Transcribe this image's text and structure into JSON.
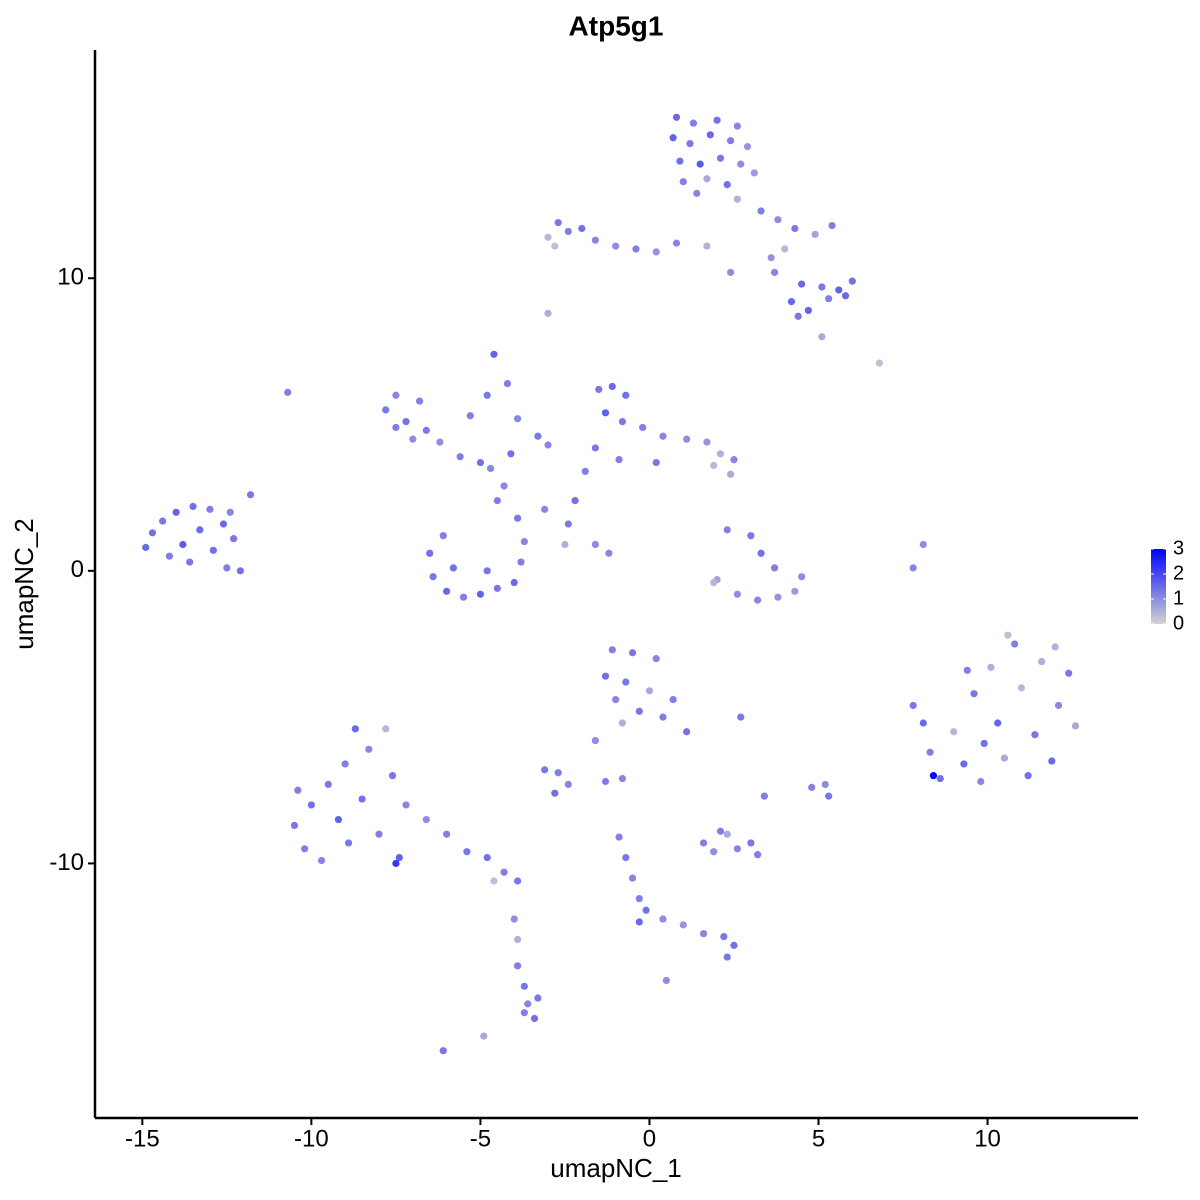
{
  "chart_data": {
    "type": "scatter",
    "title": "Atp5g1",
    "xlabel": "umapNC_1",
    "ylabel": "umapNC_2",
    "xlim": [
      -16.4,
      14.45
    ],
    "ylim": [
      -18.7,
      17.8
    ],
    "xticks": [
      -15,
      -10,
      -5,
      0,
      5,
      10
    ],
    "yticks": [
      -10,
      0,
      10
    ],
    "grid": false,
    "color_low": "#d3d3d3",
    "color_high": "#0000ff",
    "colorlim": [
      0,
      3
    ],
    "colorticks": [
      0,
      1,
      2,
      3
    ],
    "x": [
      0.8,
      1.3,
      2.0,
      2.6,
      0.7,
      1.2,
      1.8,
      2.4,
      2.9,
      0.9,
      1.5,
      2.1,
      2.7,
      1.0,
      1.7,
      2.3,
      3.1,
      1.4,
      2.6,
      3.3,
      3.8,
      4.3,
      4.9,
      5.4,
      4.0,
      3.7,
      4.5,
      5.1,
      5.6,
      6.0,
      4.2,
      4.7,
      5.3,
      5.8,
      4.4,
      5.1,
      -3.0,
      -2.7,
      -2.4,
      -2.0,
      -1.6,
      -1.0,
      -0.4,
      0.2,
      0.8,
      1.7,
      -2.8,
      2.4,
      3.6,
      -3.0,
      6.8,
      -10.7,
      -14.9,
      -14.7,
      -14.4,
      -14.0,
      -13.5,
      -13.0,
      -12.6,
      -12.3,
      -14.2,
      -13.8,
      -13.3,
      -12.9,
      -13.6,
      -12.5,
      -12.1,
      -12.4,
      -11.8,
      -7.8,
      -7.5,
      -7.2,
      -6.8,
      -6.6,
      -6.2,
      -5.6,
      -5.0,
      -4.7,
      -5.3,
      -4.8,
      -4.6,
      -4.2,
      -3.9,
      -3.3,
      -7.5,
      -7.0,
      -4.1,
      -3.0,
      -6.5,
      -6.4,
      -6.0,
      -5.5,
      -5.0,
      -4.5,
      -4.0,
      -3.8,
      -3.7,
      -3.9,
      -4.5,
      -4.3,
      -5.8,
      -4.8,
      -6.1,
      -1.5,
      -1.1,
      -0.7,
      -1.3,
      -0.8,
      -0.2,
      0.4,
      1.1,
      1.7,
      2.1,
      2.5,
      2.4,
      1.9,
      -1.6,
      -1.9,
      -0.9,
      0.2,
      -2.2,
      -2.4,
      -3.1,
      -2.5,
      -1.6,
      -1.2,
      2.3,
      3.0,
      3.3,
      3.7,
      2.0,
      2.6,
      3.2,
      3.8,
      4.3,
      4.5,
      1.9,
      8.1,
      7.8,
      7.8,
      8.1,
      8.3,
      8.6,
      9.0,
      9.3,
      9.6,
      9.8,
      10.1,
      10.3,
      10.5,
      10.8,
      11.0,
      11.2,
      11.4,
      11.6,
      11.9,
      12.1,
      12.4,
      12.6,
      9.4,
      10.6,
      8.4,
      12.0,
      9.9,
      -10.5,
      -10.2,
      -10.0,
      -9.7,
      -9.5,
      -9.2,
      -9.0,
      -8.9,
      -8.7,
      -8.5,
      -8.3,
      -8.0,
      -7.8,
      -7.6,
      -7.2,
      -7.4,
      -6.6,
      -6.0,
      -5.4,
      -4.8,
      -4.3,
      -3.9,
      -4.6,
      -10.4,
      -7.5,
      -1.1,
      -0.5,
      0.2,
      -1.3,
      -0.7,
      0.0,
      0.7,
      -1.0,
      -0.3,
      0.4,
      1.1,
      -0.8,
      -3.1,
      -2.7,
      -2.4,
      -2.8,
      -1.6,
      -1.3,
      -0.8,
      1.6,
      1.9,
      2.3,
      2.6,
      3.0,
      3.2,
      2.1,
      2.7,
      4.8,
      5.2,
      5.3,
      3.4,
      -0.9,
      -0.7,
      -0.5,
      -0.3,
      -0.1,
      -0.3,
      0.4,
      1.0,
      1.6,
      2.2,
      2.5,
      2.3,
      -3.9,
      -3.7,
      -3.6,
      -3.4,
      -3.7,
      -3.3,
      -4.0,
      -3.9,
      0.5,
      -4.9,
      -6.1
    ],
    "y": [
      15.5,
      15.3,
      15.4,
      15.2,
      14.8,
      14.6,
      14.9,
      14.7,
      14.5,
      14.0,
      13.9,
      14.1,
      13.9,
      13.3,
      13.4,
      13.2,
      13.6,
      12.9,
      12.7,
      12.3,
      12.0,
      11.7,
      11.5,
      11.8,
      11.0,
      10.2,
      9.8,
      9.7,
      9.6,
      9.9,
      9.2,
      8.9,
      9.3,
      9.4,
      8.7,
      8.0,
      11.4,
      11.9,
      11.6,
      11.7,
      11.3,
      11.1,
      11.0,
      10.9,
      11.2,
      11.1,
      11.1,
      10.2,
      10.7,
      8.8,
      7.1,
      6.1,
      0.8,
      1.3,
      1.7,
      2.0,
      2.2,
      2.1,
      1.6,
      1.1,
      0.5,
      0.9,
      1.4,
      0.7,
      0.3,
      0.1,
      0.0,
      2.0,
      2.6,
      5.5,
      6.0,
      5.1,
      5.8,
      4.8,
      4.4,
      3.9,
      3.7,
      3.5,
      5.3,
      6.0,
      7.4,
      6.4,
      5.2,
      4.6,
      4.9,
      4.5,
      4.0,
      4.3,
      0.6,
      -0.2,
      -0.7,
      -0.9,
      -0.8,
      -0.6,
      -0.4,
      0.3,
      1.0,
      1.8,
      2.4,
      2.9,
      0.1,
      0.0,
      1.2,
      6.2,
      6.3,
      6.0,
      5.4,
      5.1,
      4.9,
      4.6,
      4.5,
      4.4,
      4.0,
      3.8,
      3.3,
      3.6,
      4.2,
      3.4,
      3.8,
      3.7,
      2.4,
      1.6,
      2.1,
      0.9,
      0.9,
      0.6,
      1.4,
      1.2,
      0.6,
      0.1,
      -0.3,
      -0.8,
      -1.0,
      -0.9,
      -0.7,
      -0.2,
      -0.4,
      0.9,
      0.1,
      -4.6,
      -5.2,
      -6.2,
      -7.1,
      -5.5,
      -6.6,
      -4.2,
      -7.2,
      -3.3,
      -5.2,
      -6.4,
      -2.5,
      -4.0,
      -7.0,
      -5.6,
      -3.1,
      -6.5,
      -4.6,
      -3.5,
      -5.3,
      -3.4,
      -2.2,
      -7.0,
      -2.6,
      -5.9,
      -8.7,
      -9.5,
      -8.0,
      -9.9,
      -7.3,
      -8.5,
      -6.6,
      -9.3,
      -5.4,
      -7.8,
      -6.1,
      -9.0,
      -5.4,
      -7.0,
      -8.0,
      -9.8,
      -8.5,
      -9.0,
      -9.6,
      -9.8,
      -10.3,
      -10.6,
      -10.6,
      -7.5,
      -10.0,
      -2.7,
      -2.8,
      -3.0,
      -3.6,
      -3.8,
      -4.1,
      -4.4,
      -4.4,
      -4.8,
      -5.0,
      -5.5,
      -5.2,
      -6.8,
      -6.9,
      -7.3,
      -7.6,
      -5.8,
      -7.2,
      -7.1,
      -9.3,
      -9.6,
      -9.0,
      -9.5,
      -9.3,
      -9.7,
      -8.9,
      -5.0,
      -7.4,
      -7.3,
      -7.7,
      -7.7,
      -9.1,
      -9.8,
      -10.5,
      -11.2,
      -11.6,
      -12.0,
      -11.9,
      -12.1,
      -12.4,
      -12.5,
      -12.8,
      -13.2,
      -13.5,
      -14.2,
      -14.8,
      -15.3,
      -15.1,
      -14.6,
      -11.9,
      -12.6,
      -14.0,
      -15.9,
      -16.4
    ],
    "values": [
      1.5,
      1.2,
      1.4,
      1.1,
      1.6,
      1.3,
      1.5,
      1.2,
      0.9,
      1.4,
      1.7,
      1.3,
      1.0,
      1.2,
      0.6,
      1.4,
      0.8,
      1.1,
      0.5,
      1.2,
      1.0,
      1.3,
      0.7,
      1.2,
      0.4,
      1.1,
      1.5,
      1.3,
      1.6,
      1.4,
      1.5,
      1.6,
      1.2,
      1.5,
      1.3,
      0.6,
      0.4,
      1.3,
      1.2,
      1.4,
      1.1,
      1.0,
      1.2,
      0.9,
      1.1,
      0.5,
      0.3,
      1.0,
      0.9,
      0.5,
      0.3,
      1.2,
      1.5,
      1.4,
      1.3,
      1.6,
      1.4,
      1.2,
      1.5,
      1.3,
      1.2,
      1.7,
      1.5,
      1.4,
      1.3,
      1.2,
      1.4,
      1.1,
      1.3,
      1.3,
      1.1,
      1.4,
      1.2,
      1.3,
      1.0,
      1.2,
      1.4,
      1.1,
      1.2,
      1.3,
      1.6,
      1.2,
      1.1,
      1.3,
      1.2,
      1.0,
      1.4,
      1.1,
      1.4,
      1.3,
      1.5,
      1.2,
      1.6,
      1.3,
      1.5,
      1.2,
      1.1,
      1.3,
      1.2,
      1.1,
      1.4,
      1.3,
      1.2,
      1.3,
      1.5,
      1.4,
      1.6,
      1.3,
      1.2,
      1.1,
      1.0,
      0.9,
      0.5,
      1.1,
      0.6,
      0.4,
      1.3,
      1.2,
      1.2,
      1.3,
      1.4,
      1.3,
      1.1,
      0.5,
      1.0,
      1.1,
      1.2,
      1.3,
      1.4,
      1.2,
      0.7,
      1.0,
      1.1,
      0.9,
      0.8,
      1.0,
      0.4,
      1.0,
      1.1,
      1.3,
      1.5,
      1.2,
      1.4,
      0.4,
      1.5,
      1.3,
      1.1,
      0.5,
      1.6,
      0.6,
      1.2,
      0.4,
      1.4,
      1.3,
      0.5,
      1.5,
      1.1,
      1.3,
      0.6,
      1.2,
      0.3,
      2.9,
      0.5,
      1.4,
      1.3,
      1.2,
      1.4,
      1.1,
      1.3,
      1.6,
      1.2,
      1.3,
      1.5,
      1.4,
      1.1,
      1.2,
      0.4,
      1.3,
      1.1,
      1.6,
      1.0,
      1.2,
      1.3,
      1.4,
      1.2,
      1.3,
      0.3,
      1.2,
      2.2,
      1.2,
      1.3,
      1.1,
      1.4,
      1.3,
      0.6,
      1.2,
      1.1,
      1.3,
      1.2,
      1.4,
      0.5,
      1.3,
      1.2,
      1.1,
      1.4,
      1.0,
      1.2,
      1.1,
      1.2,
      1.0,
      0.6,
      1.1,
      1.3,
      1.2,
      1.2,
      1.3,
      1.2,
      1.0,
      1.3,
      1.2,
      1.2,
      1.3,
      1.1,
      1.2,
      1.4,
      1.5,
      1.0,
      0.9,
      1.1,
      1.3,
      1.4,
      1.3,
      1.2,
      1.3,
      1.1,
      1.4,
      1.2,
      1.3,
      1.0,
      0.5,
      1.0,
      0.6,
      1.3
    ]
  }
}
